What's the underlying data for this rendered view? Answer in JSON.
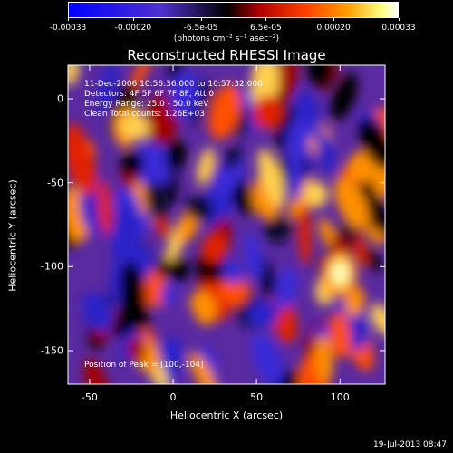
{
  "colorbar": {
    "tick_labels": [
      "-0.00033",
      "-0.00020",
      "-6.5e-05",
      "6.5e-05",
      "0.00020",
      "0.00033"
    ],
    "tick_values": [
      -0.00033,
      -0.0002,
      -6.5e-05,
      6.5e-05,
      0.0002,
      0.00033
    ],
    "range": [
      -0.00033,
      0.00033
    ],
    "unit_text": "(photons cm⁻² s⁻¹ asec⁻²)",
    "colors": [
      "#0000ff",
      "#4020c0",
      "#000000",
      "#a00000",
      "#ff3000",
      "#ff9000",
      "#ffff80",
      "#ffffff"
    ]
  },
  "title": "Reconstructed RHESSI Image",
  "info_lines": [
    "11-Dec-2006 10:56:36.000 to 10:57:32.000",
    "Detectors: 4F 5F 6F 7F 8F, Att 0",
    "Energy Range: 25.0 - 50.0 keV",
    "Clean     Total counts: 1.26E+03"
  ],
  "peak_text": "Position of Peak = [100,-104]",
  "footer": "19-Jul-2013 08:47",
  "chart_data": {
    "type": "heatmap",
    "title": "Reconstructed RHESSI Image",
    "xlabel": "Heliocentric X (arcsec)",
    "ylabel": "Heliocentric Y (arcsec)",
    "xlim": [
      -63,
      127
    ],
    "ylim": [
      -170,
      20
    ],
    "x_ticks": [
      -50,
      0,
      50,
      100
    ],
    "x_tick_labels": [
      "-50",
      "0",
      "50",
      "100"
    ],
    "y_ticks": [
      0,
      -50,
      -100,
      -150
    ],
    "y_tick_labels": [
      "0",
      "-50",
      "-100",
      "-150"
    ],
    "peak_position": [
      100,
      -104
    ],
    "peak_value": 0.00033
  }
}
